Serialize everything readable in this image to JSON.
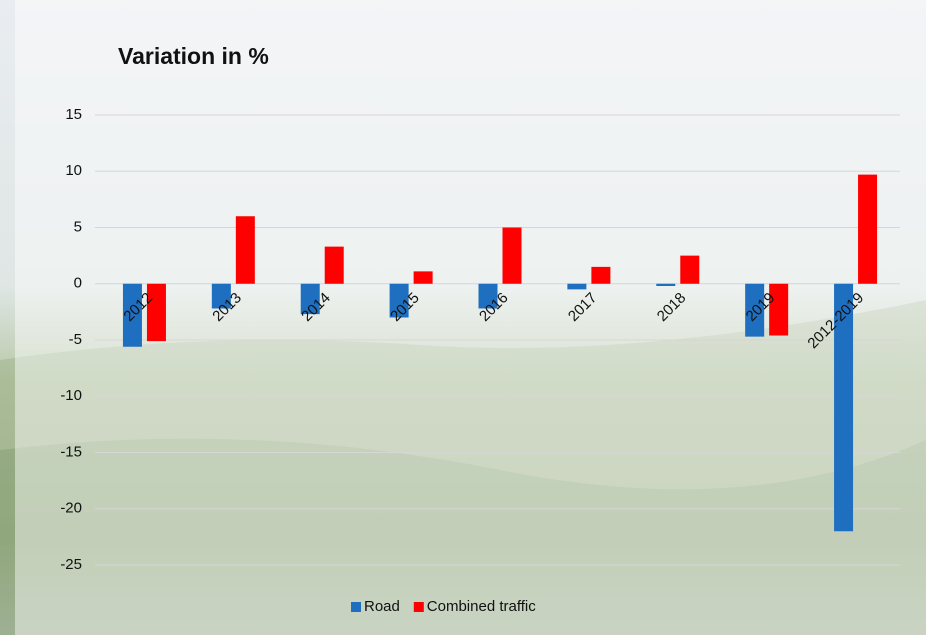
{
  "chart_data": {
    "type": "bar",
    "title": "Variation in %",
    "categories": [
      "2012",
      "2013",
      "2014",
      "2015",
      "2016",
      "2017",
      "2018",
      "2019",
      "2012-2019"
    ],
    "series": [
      {
        "name": "Road",
        "color": "#1f6fc0",
        "values": [
          -5.6,
          -2.2,
          -2.7,
          -3.0,
          -2.2,
          -0.5,
          -0.2,
          -4.7,
          -22.0
        ]
      },
      {
        "name": "Combined traffic",
        "color": "#ff0000",
        "values": [
          -5.1,
          6.0,
          3.3,
          1.1,
          5.0,
          1.5,
          2.5,
          -4.6,
          9.7
        ]
      }
    ],
    "ylim": [
      -25,
      15
    ],
    "yticks": [
      -25,
      -20,
      -15,
      -10,
      -5,
      0,
      5,
      10,
      15
    ],
    "grid": true,
    "legend": "bottom"
  }
}
